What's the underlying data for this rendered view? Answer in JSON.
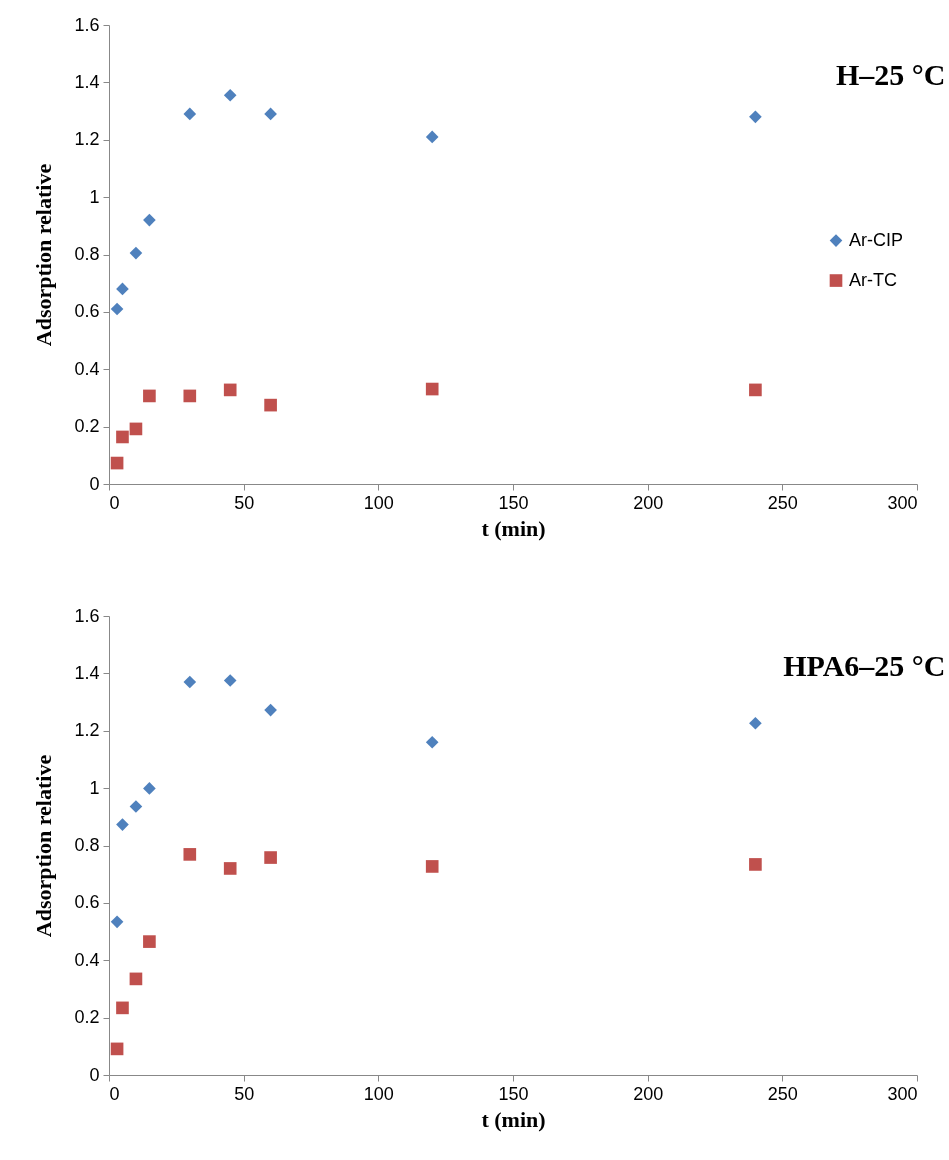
{
  "chart_data": [
    {
      "type": "scatter",
      "title": "H–25 °C",
      "xlabel": "t (min)",
      "ylabel": "Adsorption relative",
      "x": [
        3,
        5,
        10,
        15,
        30,
        45,
        60,
        120,
        240
      ],
      "series": [
        {
          "name": "Ar-CIP",
          "color": "#4f81bd",
          "marker": "diamond",
          "values": [
            0.61,
            0.68,
            0.805,
            0.92,
            1.29,
            1.355,
            1.29,
            1.21,
            1.28
          ]
        },
        {
          "name": "Ar-TC",
          "color": "#c0504d",
          "marker": "square",
          "values": [
            0.073,
            0.164,
            0.192,
            0.307,
            0.307,
            0.328,
            0.275,
            0.331,
            0.328
          ]
        }
      ],
      "xlim": [
        0,
        300
      ],
      "xticks": [
        0,
        50,
        100,
        150,
        200,
        250,
        300
      ],
      "ylim": [
        0,
        1.6
      ],
      "yticks": [
        0,
        0.2,
        0.4,
        0.6,
        0.8,
        1,
        1.2,
        1.4,
        1.6
      ],
      "grid": false,
      "legend": "right"
    },
    {
      "type": "scatter",
      "title": "HPA6–25 °C",
      "xlabel": "t (min)",
      "ylabel": "Adsorption relative",
      "x": [
        3,
        5,
        10,
        15,
        30,
        45,
        60,
        120,
        240
      ],
      "series": [
        {
          "name": "Ar-CIP",
          "color": "#4f81bd",
          "marker": "diamond",
          "values": [
            0.534,
            0.873,
            0.936,
            0.999,
            1.37,
            1.375,
            1.272,
            1.16,
            1.226
          ]
        },
        {
          "name": "Ar-TC",
          "color": "#c0504d",
          "marker": "square",
          "values": [
            0.091,
            0.234,
            0.335,
            0.465,
            0.769,
            0.72,
            0.758,
            0.727,
            0.734
          ]
        }
      ],
      "xlim": [
        0,
        300
      ],
      "xticks": [
        0,
        50,
        100,
        150,
        200,
        250,
        300
      ],
      "ylim": [
        0,
        1.6
      ],
      "yticks": [
        0,
        0.2,
        0.4,
        0.6,
        0.8,
        1,
        1.2,
        1.4,
        1.6
      ],
      "grid": false,
      "legend": "right"
    }
  ]
}
